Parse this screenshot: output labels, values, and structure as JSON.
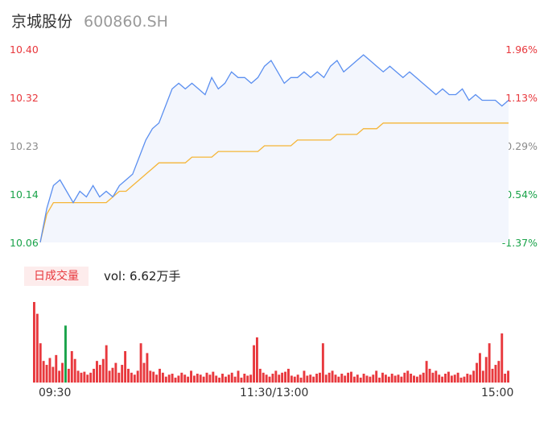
{
  "header": {
    "name": "京城股份",
    "code": "600860.SH"
  },
  "price_labels": [
    "10.40",
    "10.32",
    "10.23",
    "10.14",
    "10.06"
  ],
  "pct_labels": [
    "1.96%",
    "1.13%",
    "0.29%",
    "-0.54%",
    "-1.37%"
  ],
  "volume": {
    "badge": "日成交量",
    "text": "vol: 6.62万手"
  },
  "time_labels": [
    "09:30",
    "11:30/13:00",
    "15:00"
  ],
  "colors": {
    "price_line": "#5b8ff0",
    "avg_line": "#f5b537",
    "up": "#e8383d",
    "down": "#1aa34a",
    "area": "#f3f6fd"
  },
  "chart_data": [
    {
      "type": "line",
      "ylim": [
        10.06,
        10.4
      ],
      "x_ticks": [
        "09:30",
        "11:30/13:00",
        "15:00"
      ],
      "series": [
        {
          "values": [
            10.06,
            10.12,
            10.16,
            10.17,
            10.15,
            10.13,
            10.15,
            10.14,
            10.16,
            10.14,
            10.15,
            10.14,
            10.16,
            10.17,
            10.18,
            10.21,
            10.24,
            10.26,
            10.27,
            10.3,
            10.33,
            10.34,
            10.33,
            10.34,
            10.33,
            10.32,
            10.35,
            10.33,
            10.34,
            10.36,
            10.35,
            10.35,
            10.34,
            10.35,
            10.37,
            10.38,
            10.36,
            10.34,
            10.35,
            10.35,
            10.36,
            10.35,
            10.36,
            10.35,
            10.37,
            10.38,
            10.36,
            10.37,
            10.38,
            10.39,
            10.38,
            10.37,
            10.36,
            10.37,
            10.36,
            10.35,
            10.36,
            10.35,
            10.34,
            10.33,
            10.32,
            10.33,
            10.32,
            10.32,
            10.33,
            10.31,
            10.32,
            10.31,
            10.31,
            10.31,
            10.3,
            10.31
          ]
        },
        {
          "values": [
            10.06,
            10.11,
            10.13,
            10.13,
            10.13,
            10.13,
            10.13,
            10.13,
            10.13,
            10.13,
            10.13,
            10.14,
            10.15,
            10.15,
            10.16,
            10.17,
            10.18,
            10.19,
            10.2,
            10.2,
            10.2,
            10.2,
            10.2,
            10.21,
            10.21,
            10.21,
            10.21,
            10.22,
            10.22,
            10.22,
            10.22,
            10.22,
            10.22,
            10.22,
            10.23,
            10.23,
            10.23,
            10.23,
            10.23,
            10.24,
            10.24,
            10.24,
            10.24,
            10.24,
            10.24,
            10.25,
            10.25,
            10.25,
            10.25,
            10.26,
            10.26,
            10.26,
            10.27,
            10.27,
            10.27,
            10.27,
            10.27,
            10.27,
            10.27,
            10.27,
            10.27,
            10.27,
            10.27,
            10.27,
            10.27,
            10.27,
            10.27,
            10.27,
            10.27,
            10.27,
            10.27,
            10.27
          ]
        }
      ]
    },
    {
      "type": "bar",
      "series": [
        {
          "values": [
            82,
            70,
            40,
            22,
            18,
            25,
            16,
            28,
            12,
            20,
            16,
            14,
            32,
            24,
            12,
            10,
            11,
            8,
            10,
            14,
            22,
            18,
            24,
            38,
            12,
            15,
            20,
            10,
            18,
            32,
            14,
            10,
            8,
            12,
            40,
            20,
            30,
            12,
            11,
            8,
            14,
            10,
            6,
            8,
            9,
            5,
            7,
            10,
            8,
            6,
            12,
            7,
            9,
            8,
            6,
            10,
            8,
            11,
            7,
            5,
            9,
            6,
            8,
            10,
            6,
            12,
            5,
            9,
            7,
            8,
            38,
            46,
            14,
            10,
            8,
            6,
            9,
            12,
            8,
            10,
            11,
            14,
            7,
            6,
            8,
            5,
            12,
            7,
            8,
            6,
            9,
            10,
            40,
            8,
            10,
            12,
            8,
            6,
            9,
            7,
            10,
            11,
            6,
            8,
            5,
            9,
            7,
            6,
            8,
            12,
            5,
            10,
            8,
            6,
            9,
            7,
            8,
            6,
            10,
            12,
            9,
            7,
            6,
            8,
            10,
            22,
            14,
            10,
            12,
            8,
            6,
            9,
            11,
            7,
            8,
            10,
            5,
            6,
            9,
            8,
            12,
            20,
            30,
            12,
            26,
            40,
            14,
            18,
            22,
            50,
            9,
            12
          ]
        },
        {
          "values": [
            0,
            0,
            0,
            0,
            0,
            0,
            0,
            0,
            0,
            0,
            58,
            0,
            0,
            0,
            0,
            0,
            0,
            0,
            0,
            0,
            0,
            0,
            0,
            0,
            0,
            0,
            0,
            0,
            0,
            0,
            0,
            0,
            0,
            0,
            0,
            0,
            0,
            0,
            0,
            0,
            0,
            0,
            0,
            0,
            0,
            0,
            0,
            0,
            0,
            0,
            0,
            0,
            0,
            0,
            0,
            0,
            0,
            0,
            0,
            0,
            0,
            0,
            0,
            0,
            0,
            0,
            0,
            0,
            0,
            0,
            0,
            0,
            0,
            0,
            0,
            0,
            0,
            0,
            0,
            0,
            0,
            0,
            0,
            0,
            0,
            0,
            0,
            0,
            0,
            0,
            0,
            0,
            0,
            0,
            0,
            0,
            0,
            0,
            0,
            0,
            0,
            0,
            0,
            0,
            0,
            0,
            0,
            0,
            0,
            0,
            0,
            0,
            0,
            0,
            0,
            0,
            0,
            0,
            0,
            0,
            0,
            0,
            0,
            0,
            0,
            0,
            0,
            0,
            0,
            0,
            0,
            0,
            0,
            0,
            0,
            0,
            0,
            0,
            0,
            0,
            0,
            0,
            0,
            0,
            0,
            0,
            0,
            0,
            0,
            0,
            0,
            0
          ]
        }
      ]
    }
  ]
}
